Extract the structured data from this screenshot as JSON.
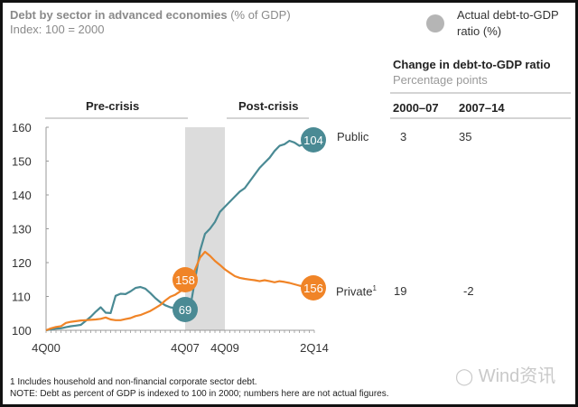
{
  "chart_data": {
    "type": "line",
    "title": "Debt by sector in advanced economies",
    "title_unit": "(% of GDP)",
    "subtitle": "Index: 100 = 2000",
    "xlabel": "",
    "ylabel": "",
    "ylim": [
      100,
      160
    ],
    "yticks": [
      100,
      110,
      120,
      130,
      140,
      150,
      160
    ],
    "xlim_quarters": [
      0,
      54
    ],
    "xticks": [
      {
        "q": 0,
        "label": "4Q00"
      },
      {
        "q": 28,
        "label": "4Q07"
      },
      {
        "q": 36,
        "label": "4Q09"
      },
      {
        "q": 54,
        "label": "2Q14"
      }
    ],
    "shaded_region": {
      "from_q": 28,
      "to_q": 36,
      "label": "crisis"
    },
    "period_labels": [
      {
        "label": "Pre-crisis",
        "from_q": 0,
        "to_q": 27
      },
      {
        "label": "Post-crisis",
        "from_q": 36,
        "to_q": 53
      }
    ],
    "grid": false,
    "series": [
      {
        "name": "Public",
        "color": "#4a8a94",
        "end_badge": "104",
        "start_badge_q": 28,
        "start_badge": "69",
        "values": [
          100,
          100.3,
          100.5,
          100.6,
          100.9,
          101.2,
          101.4,
          101.6,
          102.8,
          104.0,
          105.5,
          106.8,
          105.2,
          105.1,
          110.2,
          110.8,
          110.7,
          111.5,
          112.5,
          112.8,
          112.3,
          111.0,
          109.5,
          108.3,
          107.4,
          106.8,
          106.5,
          106.2,
          106.0,
          106.5,
          115.0,
          123.5,
          128.5,
          130.0,
          132.0,
          135.0,
          136.5,
          138.0,
          139.5,
          141.0,
          142.0,
          144.0,
          146.0,
          148.0,
          149.5,
          151.0,
          153.0,
          154.5,
          155.0,
          156.0,
          155.5,
          154.5,
          155.0,
          155.5,
          156.0
        ]
      },
      {
        "name": "Private",
        "superscript": "1",
        "color": "#f08427",
        "end_badge": "156",
        "start_badge_q": 28,
        "start_badge": "158",
        "values": [
          100,
          100.6,
          101.0,
          101.2,
          102.2,
          102.5,
          102.7,
          102.9,
          103.0,
          103.1,
          103.2,
          103.4,
          103.8,
          103.2,
          103.0,
          103.0,
          103.3,
          103.6,
          104.2,
          104.5,
          105.1,
          105.7,
          106.6,
          107.5,
          108.8,
          109.9,
          110.5,
          111.5,
          112.5,
          114.0,
          118.0,
          121.5,
          123.2,
          122.0,
          120.5,
          119.3,
          118.0,
          117.0,
          116.0,
          115.5,
          115.2,
          115.0,
          114.8,
          114.5,
          114.8,
          114.5,
          114.2,
          114.5,
          114.3,
          114.0,
          113.6,
          113.2,
          112.9,
          112.7,
          112.6
        ]
      }
    ]
  },
  "legend": {
    "label_line1": "Actual debt-to-GDP",
    "label_line2": "ratio (%)",
    "dot_color": "#b5b5b5"
  },
  "change_table": {
    "title": "Change in debt-to-GDP ratio",
    "subtitle": "Percentage points",
    "columns": [
      "2000–07",
      "2007–14"
    ],
    "rows": [
      {
        "series": "Public",
        "values": [
          "3",
          "35"
        ]
      },
      {
        "series": "Private",
        "values": [
          "19",
          "-2"
        ]
      }
    ]
  },
  "footnotes": {
    "note1": "1 Includes household and non-financial corporate sector debt.",
    "note2": "NOTE: Debt as percent of GDP is indexed to 100 in 2000; numbers here are not actual figures."
  },
  "watermark": "Wind资讯"
}
